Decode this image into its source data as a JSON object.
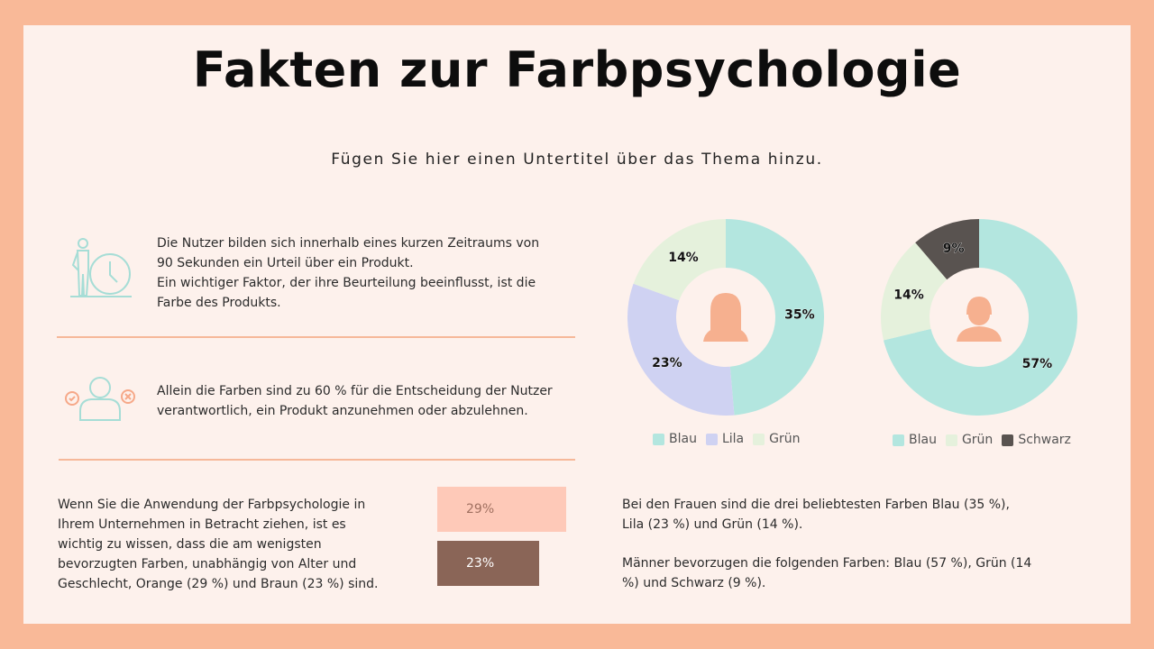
{
  "header": {
    "title": "Fakten zur Farbpsychologie",
    "subtitle": "Fügen Sie hier einen Untertitel über das Thema hinzu."
  },
  "facts": [
    {
      "icon": "person-clock-icon",
      "text": "Die Nutzer bilden sich innerhalb eines kurzen Zeitraums von 90 Sekunden ein Urteil über ein Produkt.\nEin wichtiger Faktor, der ihre Beurteilung beeinflusst, ist die Farbe des Produkts."
    },
    {
      "icon": "person-decision-icon",
      "text": "Allein die Farben sind zu 60 % für die Entscheidung der Nutzer verantwortlich, ein Produkt anzunehmen oder abzulehnen."
    },
    {
      "text": "Wenn Sie die Anwendung der Farbpsychologie in Ihrem Unternehmen in Betracht ziehen, ist es wichtig zu wissen, dass die am wenigsten bevorzugten Farben, unabhängig von Alter und Geschlecht, Orange (29 %) und Braun (23 %) sind."
    }
  ],
  "notes": {
    "women": "Bei den Frauen sind die drei beliebtesten Farben Blau (35 %), Lila (23 %) und Grün (14 %).",
    "men": "Männer bevorzugen die folgenden Farben: Blau (57 %), Grün (14 %) und Schwarz (9 %)."
  },
  "colors": {
    "blau": "#b3e6df",
    "lila": "#cfd2f2",
    "gruen": "#e5f1dc",
    "schwarz": "#595350",
    "orange": "#fec9b8",
    "braun": "#8a6557",
    "accent": "#f6a888"
  },
  "chart_data": [
    {
      "type": "pie",
      "donut": true,
      "center_icon": "woman-icon",
      "categories": [
        "Blau",
        "Lila",
        "Grün"
      ],
      "values": [
        35,
        23,
        14
      ],
      "labels": [
        "35%",
        "23%",
        "14%"
      ],
      "colors": [
        "#b3e6df",
        "#cfd2f2",
        "#e5f1dc"
      ],
      "legend": "bottom"
    },
    {
      "type": "pie",
      "donut": true,
      "center_icon": "man-icon",
      "categories": [
        "Blau",
        "Grün",
        "Schwarz"
      ],
      "values": [
        57,
        14,
        9
      ],
      "labels": [
        "57%",
        "14%",
        "9%"
      ],
      "colors": [
        "#b3e6df",
        "#e5f1dc",
        "#595350"
      ],
      "legend": "bottom"
    },
    {
      "type": "bar",
      "orientation": "horizontal",
      "categories": [
        "Orange",
        "Braun"
      ],
      "values": [
        29,
        23
      ],
      "labels": [
        "29%",
        "23%"
      ],
      "colors": [
        "#fec9b8",
        "#8a6557"
      ]
    }
  ]
}
